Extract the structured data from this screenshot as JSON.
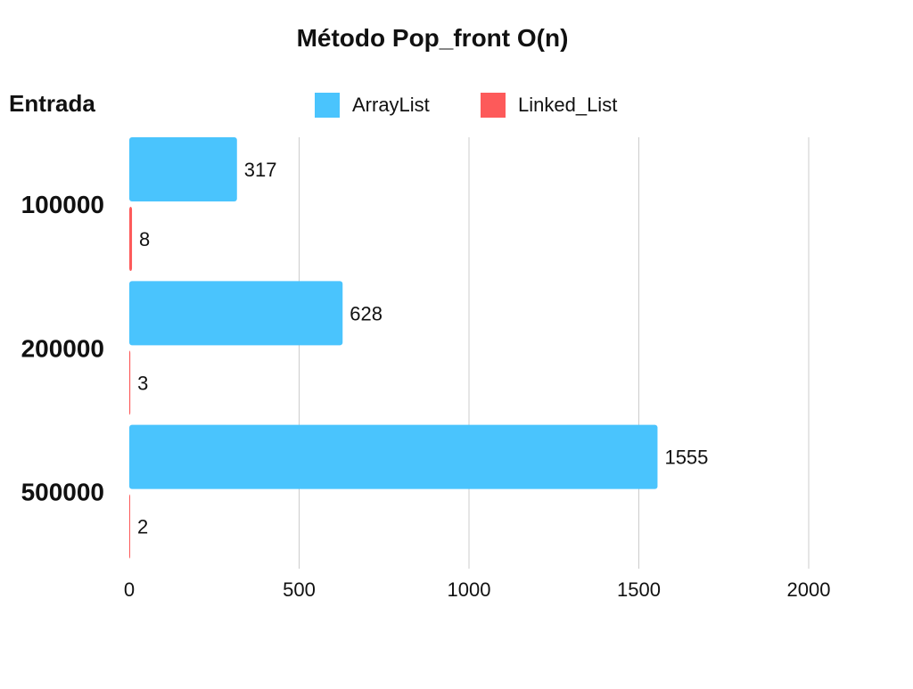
{
  "chart_data": {
    "type": "bar",
    "orientation": "horizontal",
    "title": "Método Pop_front O(n)",
    "ylabel": "Entrada",
    "xlabel": "",
    "categories": [
      "100000",
      "200000",
      "500000"
    ],
    "series": [
      {
        "name": "ArrayList",
        "color": "#4ac4fd",
        "values": [
          317,
          628,
          1555
        ]
      },
      {
        "name": "Linked_List",
        "color": "#fd5a5a",
        "values": [
          8,
          3,
          2
        ]
      }
    ],
    "xlim": [
      0,
      2000
    ],
    "x_ticks": [
      0,
      500,
      1000,
      1500,
      2000
    ],
    "grid": true,
    "legend_position": "top",
    "data_labels": true
  }
}
